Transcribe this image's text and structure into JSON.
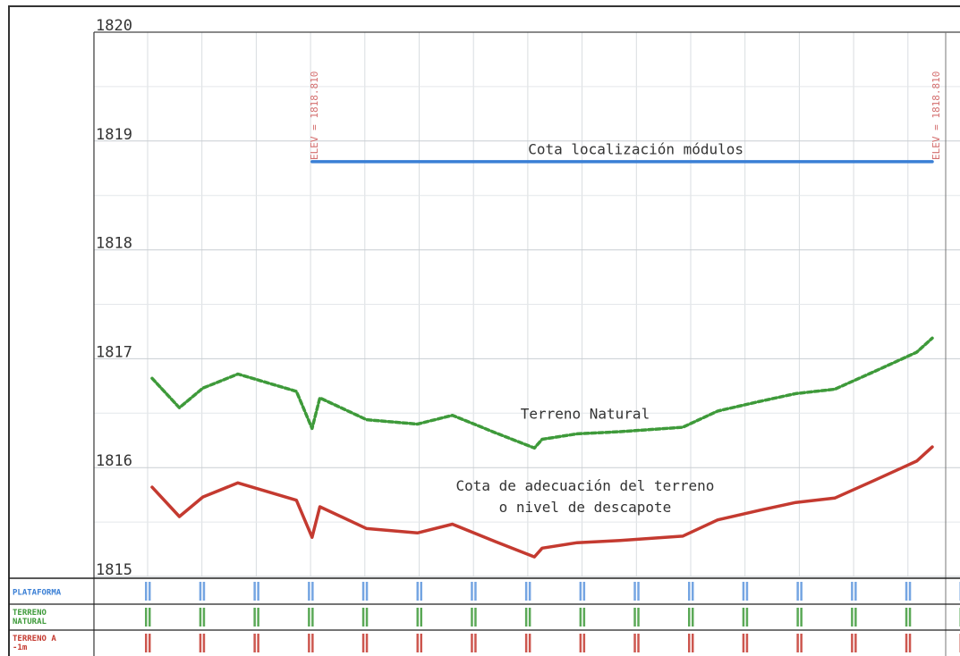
{
  "chart_data": {
    "type": "line",
    "title": "",
    "xlabel": "",
    "ylabel": "",
    "ylim": [
      1815,
      1820
    ],
    "y_ticks": [
      "1815",
      "1816",
      "1817",
      "1818",
      "1819",
      "1820"
    ],
    "grid": true,
    "x": [
      0,
      0.035,
      0.065,
      0.11,
      0.185,
      0.205,
      0.215,
      0.275,
      0.34,
      0.385,
      0.44,
      0.49,
      0.5,
      0.545,
      0.6,
      0.68,
      0.725,
      0.78,
      0.825,
      0.875,
      0.925,
      0.98,
      1.0
    ],
    "series": [
      {
        "name": "Terreno Natural",
        "color": "#3e9a3a",
        "style": "dashed",
        "values": [
          1816.82,
          1816.55,
          1816.73,
          1816.86,
          1816.7,
          1816.36,
          1816.64,
          1816.44,
          1816.4,
          1816.48,
          1816.32,
          1816.18,
          1816.26,
          1816.31,
          1816.33,
          1816.37,
          1816.52,
          1816.61,
          1816.68,
          1816.72,
          1816.88,
          1817.06,
          1817.19
        ]
      },
      {
        "name": "Cota de adecuación del terreno o nivel de descapote",
        "color": "#c43a30",
        "style": "solid",
        "values": [
          1815.82,
          1815.55,
          1815.73,
          1815.86,
          1815.7,
          1815.36,
          1815.64,
          1815.44,
          1815.4,
          1815.48,
          1815.32,
          1815.18,
          1815.26,
          1815.31,
          1815.33,
          1815.37,
          1815.52,
          1815.61,
          1815.68,
          1815.72,
          1815.88,
          1816.06,
          1816.19
        ]
      },
      {
        "name": "Cota localización módulos",
        "color": "#3a7fd5",
        "style": "solid",
        "x": [
          0.205,
          1.0
        ],
        "values": [
          1818.81,
          1818.81
        ]
      }
    ],
    "annotations": [
      {
        "text": "Cota localización módulos",
        "x": 0.62,
        "y": 1818.88
      },
      {
        "text": "Terreno Natural",
        "x": 0.555,
        "y": 1816.45
      },
      {
        "text": "Cota de adecuación del terreno",
        "x": 0.555,
        "y": 1815.79
      },
      {
        "text": "o nivel de descapote",
        "x": 0.555,
        "y": 1815.59
      },
      {
        "text": "ELEV = 1818.810",
        "x": 0.205,
        "y": 1818.81,
        "rotation": -90
      },
      {
        "text": "ELEV = 1818.810",
        "x": 1.0,
        "y": 1818.81,
        "rotation": -90
      }
    ],
    "table_rows": [
      {
        "label": [
          "PLATAFORMA"
        ],
        "color": "#3a7fd5"
      },
      {
        "label": [
          "TERRENO",
          "NATURAL"
        ],
        "color": "#3e9a3a"
      },
      {
        "label": [
          "TERRENO A",
          "-1m"
        ],
        "color": "#c43a30"
      }
    ]
  }
}
